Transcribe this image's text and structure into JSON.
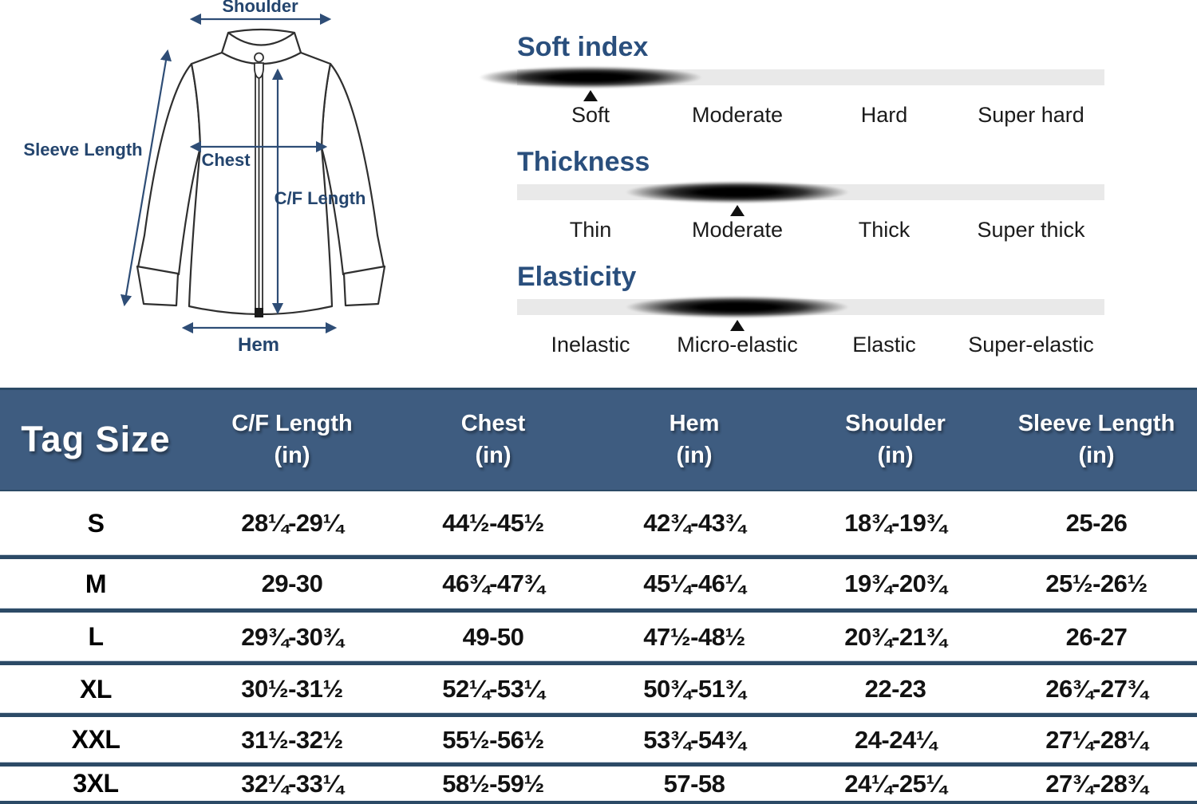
{
  "diagram": {
    "shoulder": "Shoulder",
    "sleeve_length": "Sleeve Length",
    "chest": "Chest",
    "cf_length": "C/F Length",
    "hem": "Hem"
  },
  "scales": [
    {
      "title": "Soft index",
      "labels": [
        "Soft",
        "Moderate",
        "Hard",
        "Super hard"
      ],
      "marker_index": 0
    },
    {
      "title": "Thickness",
      "labels": [
        "Thin",
        "Moderate",
        "Thick",
        "Super thick"
      ],
      "marker_index": 1
    },
    {
      "title": "Elasticity",
      "labels": [
        "Inelastic",
        "Micro-elastic",
        "Elastic",
        "Super-elastic"
      ],
      "marker_index": 1
    }
  ],
  "table": {
    "tag_size_label": "Tag Size",
    "columns": [
      {
        "label": "C/F Length",
        "unit": "(in)"
      },
      {
        "label": "Chest",
        "unit": "(in)"
      },
      {
        "label": "Hem",
        "unit": "(in)"
      },
      {
        "label": "Shoulder",
        "unit": "(in)"
      },
      {
        "label": "Sleeve Length",
        "unit": "(in)"
      }
    ],
    "rows": [
      {
        "size": "S",
        "cf_length": "28¼-29¼",
        "chest": "44½-45½",
        "hem": "42¾-43¾",
        "shoulder": "18¾-19¾",
        "sleeve": "25-26"
      },
      {
        "size": "M",
        "cf_length": "29-30",
        "chest": "46¾-47¾",
        "hem": "45¼-46¼",
        "shoulder": "19¾-20¾",
        "sleeve": "25½-26½"
      },
      {
        "size": "L",
        "cf_length": "29¾-30¾",
        "chest": "49-50",
        "hem": "47½-48½",
        "shoulder": "20¾-21¾",
        "sleeve": "26-27"
      },
      {
        "size": "XL",
        "cf_length": "30½-31½",
        "chest": "52¼-53¼",
        "hem": "50¾-51¾",
        "shoulder": "22-23",
        "sleeve": "26¾-27¾"
      },
      {
        "size": "XXL",
        "cf_length": "31½-32½",
        "chest": "55½-56½",
        "hem": "53¾-54¾",
        "shoulder": "24-24¼",
        "sleeve": "27¼-28¼"
      },
      {
        "size": "3XL",
        "cf_length": "32¼-33¼",
        "chest": "58½-59½",
        "hem": "57-58",
        "shoulder": "24¼-25¼",
        "sleeve": "27¾-28¾"
      }
    ]
  },
  "colors": {
    "header_bg": "#3e5c80",
    "divider": "#2c4a66",
    "heading": "#2a4f7d",
    "diagram_accent": "#2e4d76",
    "bar_track": "#e9e9e9"
  }
}
